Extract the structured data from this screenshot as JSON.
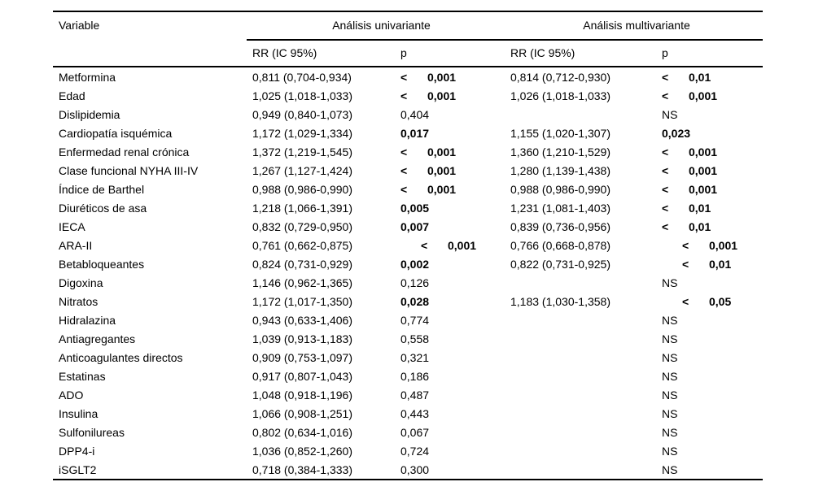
{
  "page": {
    "background": "#ffffff",
    "text_color": "#000000"
  },
  "table": {
    "columns": {
      "variable": "Variable",
      "group_univariate": "Análisis univariante",
      "group_multivariate": "Análisis multivariante",
      "sub_rr_uni": "RR (IC 95%)",
      "sub_p_uni": "p",
      "sub_rr_multi": "RR (IC 95%)",
      "sub_p_multi": "p"
    },
    "rows": [
      {
        "variable": "Metformina",
        "uni_rr": "0,811 (0,704-0,934)",
        "uni_p": {
          "lt": true,
          "value": "0,001",
          "bold": true,
          "indent": false
        },
        "multi_rr": "0,814 (0,712-0,930)",
        "multi_p": {
          "lt": true,
          "value": "0,01",
          "bold": true,
          "indent": false
        }
      },
      {
        "variable": "Edad",
        "uni_rr": "1,025 (1,018-1,033)",
        "uni_p": {
          "lt": true,
          "value": "0,001",
          "bold": true,
          "indent": false
        },
        "multi_rr": "1,026 (1,018-1,033)",
        "multi_p": {
          "lt": true,
          "value": "0,001",
          "bold": true,
          "indent": false
        }
      },
      {
        "variable": "Dislipidemia",
        "uni_rr": "0,949 (0,840-1,073)",
        "uni_p": {
          "lt": false,
          "value": "0,404",
          "bold": false,
          "indent": false
        },
        "multi_rr": "",
        "multi_p": {
          "lt": false,
          "value": "NS",
          "bold": false,
          "indent": false
        }
      },
      {
        "variable": "Cardiopatía isquémica",
        "uni_rr": "1,172 (1,029-1,334)",
        "uni_p": {
          "lt": false,
          "value": "0,017",
          "bold": true,
          "indent": false
        },
        "multi_rr": "1,155 (1,020-1,307)",
        "multi_p": {
          "lt": false,
          "value": "0,023",
          "bold": true,
          "indent": false
        }
      },
      {
        "variable": "Enfermedad renal crónica",
        "uni_rr": "1,372 (1,219-1,545)",
        "uni_p": {
          "lt": true,
          "value": "0,001",
          "bold": true,
          "indent": false
        },
        "multi_rr": "1,360 (1,210-1,529)",
        "multi_p": {
          "lt": true,
          "value": "0,001",
          "bold": true,
          "indent": false
        }
      },
      {
        "variable": "Clase funcional NYHA III-IV",
        "uni_rr": "1,267 (1,127-1,424)",
        "uni_p": {
          "lt": true,
          "value": "0,001",
          "bold": true,
          "indent": false
        },
        "multi_rr": "1,280 (1,139-1,438)",
        "multi_p": {
          "lt": true,
          "value": "0,001",
          "bold": true,
          "indent": false
        }
      },
      {
        "variable": "Índice de Barthel",
        "uni_rr": "0,988 (0,986-0,990)",
        "uni_p": {
          "lt": true,
          "value": "0,001",
          "bold": true,
          "indent": false
        },
        "multi_rr": "0,988 (0,986-0,990)",
        "multi_p": {
          "lt": true,
          "value": "0,001",
          "bold": true,
          "indent": false
        }
      },
      {
        "variable": "Diuréticos de asa",
        "uni_rr": "1,218 (1,066-1,391)",
        "uni_p": {
          "lt": false,
          "value": "0,005",
          "bold": true,
          "indent": false
        },
        "multi_rr": "1,231 (1,081-1,403)",
        "multi_p": {
          "lt": true,
          "value": "0,01",
          "bold": true,
          "indent": false
        }
      },
      {
        "variable": "IECA",
        "uni_rr": "0,832 (0,729-0,950)",
        "uni_p": {
          "lt": false,
          "value": "0,007",
          "bold": true,
          "indent": false
        },
        "multi_rr": "0,839 (0,736-0,956)",
        "multi_p": {
          "lt": true,
          "value": "0,01",
          "bold": true,
          "indent": false
        }
      },
      {
        "variable": "ARA-II",
        "uni_rr": "0,761 (0,662-0,875)",
        "uni_p": {
          "lt": true,
          "value": "0,001",
          "bold": true,
          "indent": true
        },
        "multi_rr": "0,766 (0,668-0,878)",
        "multi_p": {
          "lt": true,
          "value": "0,001",
          "bold": true,
          "indent": true
        }
      },
      {
        "variable": "Betabloqueantes",
        "uni_rr": "0,824 (0,731-0,929)",
        "uni_p": {
          "lt": false,
          "value": "0,002",
          "bold": true,
          "indent": false
        },
        "multi_rr": "0,822 (0,731-0,925)",
        "multi_p": {
          "lt": true,
          "value": "0,01",
          "bold": true,
          "indent": true
        }
      },
      {
        "variable": "Digoxina",
        "uni_rr": "1,146 (0,962-1,365)",
        "uni_p": {
          "lt": false,
          "value": "0,126",
          "bold": false,
          "indent": false
        },
        "multi_rr": "",
        "multi_p": {
          "lt": false,
          "value": "NS",
          "bold": false,
          "indent": false
        }
      },
      {
        "variable": "Nitratos",
        "uni_rr": "1,172 (1,017-1,350)",
        "uni_p": {
          "lt": false,
          "value": "0,028",
          "bold": true,
          "indent": false
        },
        "multi_rr": "1,183 (1,030-1,358)",
        "multi_p": {
          "lt": true,
          "value": "0,05",
          "bold": true,
          "indent": true
        }
      },
      {
        "variable": "Hidralazina",
        "uni_rr": "0,943 (0,633-1,406)",
        "uni_p": {
          "lt": false,
          "value": "0,774",
          "bold": false,
          "indent": false
        },
        "multi_rr": "",
        "multi_p": {
          "lt": false,
          "value": "NS",
          "bold": false,
          "indent": false
        }
      },
      {
        "variable": "Antiagregantes",
        "uni_rr": "1,039 (0,913-1,183)",
        "uni_p": {
          "lt": false,
          "value": "0,558",
          "bold": false,
          "indent": false
        },
        "multi_rr": "",
        "multi_p": {
          "lt": false,
          "value": "NS",
          "bold": false,
          "indent": false
        }
      },
      {
        "variable": "Anticoagulantes directos",
        "uni_rr": "0,909 (0,753-1,097)",
        "uni_p": {
          "lt": false,
          "value": "0,321",
          "bold": false,
          "indent": false
        },
        "multi_rr": "",
        "multi_p": {
          "lt": false,
          "value": "NS",
          "bold": false,
          "indent": false
        }
      },
      {
        "variable": "Estatinas",
        "uni_rr": "0,917 (0,807-1,043)",
        "uni_p": {
          "lt": false,
          "value": "0,186",
          "bold": false,
          "indent": false
        },
        "multi_rr": "",
        "multi_p": {
          "lt": false,
          "value": "NS",
          "bold": false,
          "indent": false
        }
      },
      {
        "variable": "ADO",
        "uni_rr": "1,048 (0,918-1,196)",
        "uni_p": {
          "lt": false,
          "value": "0,487",
          "bold": false,
          "indent": false
        },
        "multi_rr": "",
        "multi_p": {
          "lt": false,
          "value": "NS",
          "bold": false,
          "indent": false
        }
      },
      {
        "variable": "Insulina",
        "uni_rr": "1,066 (0,908-1,251)",
        "uni_p": {
          "lt": false,
          "value": "0,443",
          "bold": false,
          "indent": false
        },
        "multi_rr": "",
        "multi_p": {
          "lt": false,
          "value": "NS",
          "bold": false,
          "indent": false
        }
      },
      {
        "variable": "Sulfonilureas",
        "uni_rr": "0,802 (0,634-1,016)",
        "uni_p": {
          "lt": false,
          "value": "0,067",
          "bold": false,
          "indent": false
        },
        "multi_rr": "",
        "multi_p": {
          "lt": false,
          "value": "NS",
          "bold": false,
          "indent": false
        }
      },
      {
        "variable": "DPP4-i",
        "uni_rr": "1,036 (0,852-1,260)",
        "uni_p": {
          "lt": false,
          "value": "0,724",
          "bold": false,
          "indent": false
        },
        "multi_rr": "",
        "multi_p": {
          "lt": false,
          "value": "NS",
          "bold": false,
          "indent": false
        }
      },
      {
        "variable": "iSGLT2",
        "uni_rr": "0,718 (0,384-1,333)",
        "uni_p": {
          "lt": false,
          "value": "0,300",
          "bold": false,
          "indent": false
        },
        "multi_rr": "",
        "multi_p": {
          "lt": false,
          "value": "NS",
          "bold": false,
          "indent": false
        }
      }
    ]
  }
}
